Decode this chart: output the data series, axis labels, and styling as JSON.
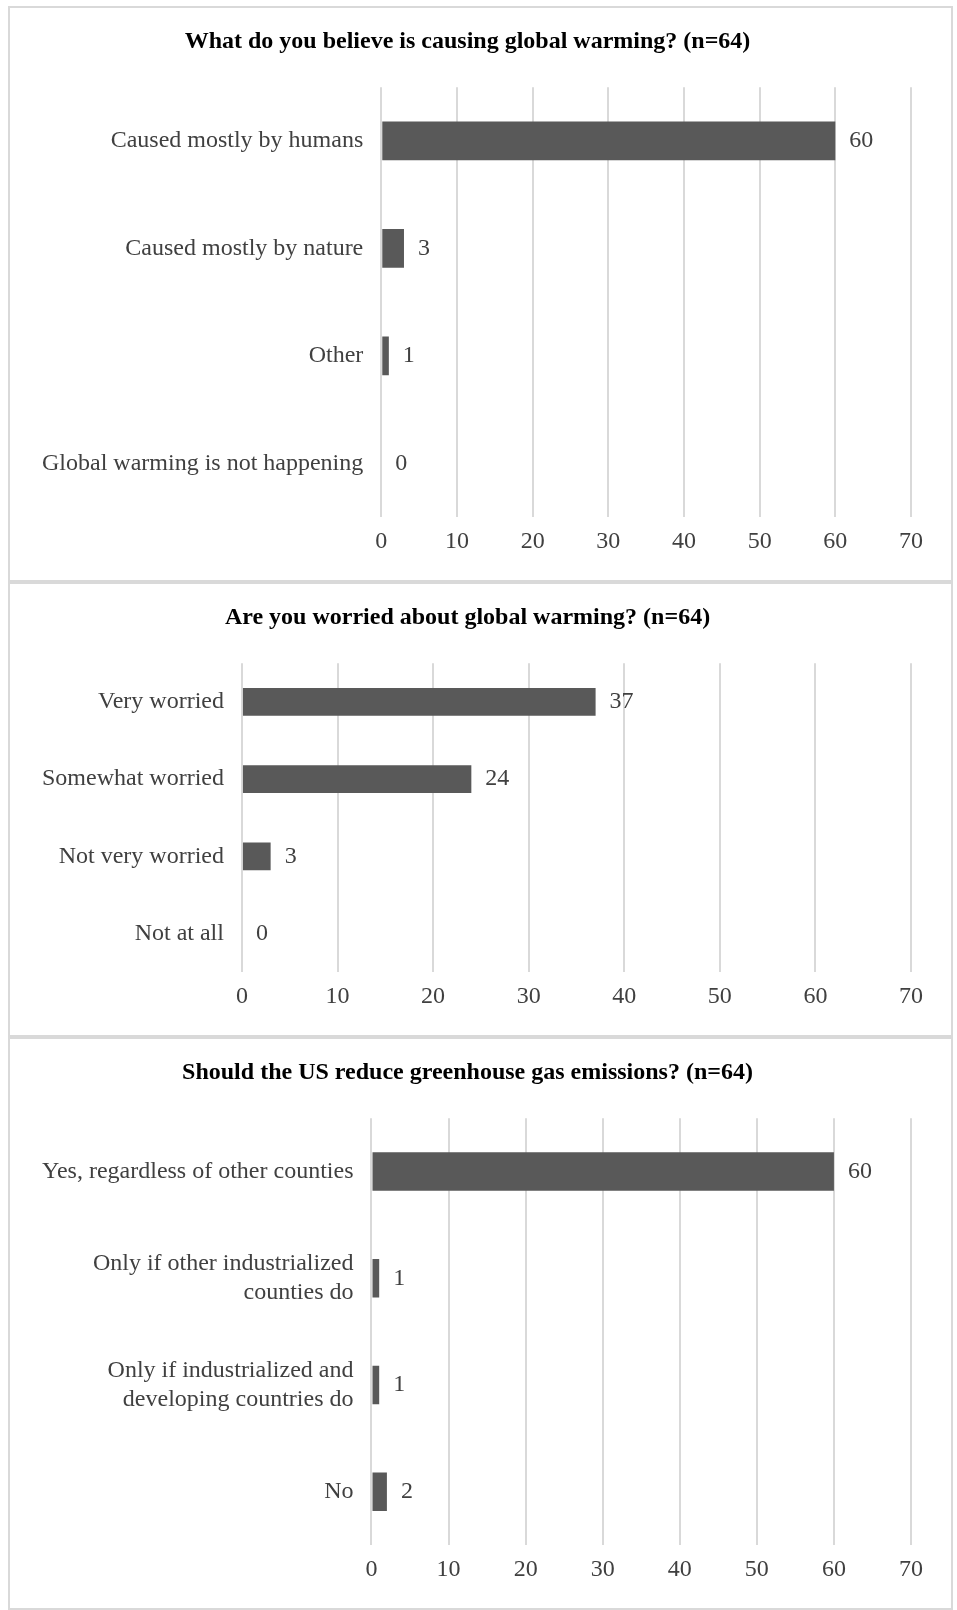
{
  "chart_data": [
    {
      "type": "bar",
      "orientation": "horizontal",
      "title": "What do you believe is causing global warming? (n=64)",
      "categories": [
        "Caused mostly by humans",
        "Caused mostly by nature",
        "Other",
        "Global warming is not happening"
      ],
      "values": [
        60,
        3,
        1,
        0
      ],
      "color": "#595959",
      "xlim": [
        0,
        70
      ],
      "xticks": [
        0,
        10,
        20,
        30,
        40,
        50,
        60,
        70
      ],
      "grid": "x",
      "data_labels": true,
      "legend": false
    },
    {
      "type": "bar",
      "orientation": "horizontal",
      "title": "Are you worried about global warming? (n=64)",
      "categories": [
        "Very worried",
        "Somewhat worried",
        "Not very worried",
        "Not at all"
      ],
      "values": [
        37,
        24,
        3,
        0
      ],
      "color": "#595959",
      "xlim": [
        0,
        70
      ],
      "xticks": [
        0,
        10,
        20,
        30,
        40,
        50,
        60,
        70
      ],
      "grid": "x",
      "data_labels": true,
      "legend": false
    },
    {
      "type": "bar",
      "orientation": "horizontal",
      "title": "Should the US reduce greenhouse gas emissions? (n=64)",
      "categories": [
        "Yes, regardless of other counties",
        "Only if other industrialized counties do",
        "Only if industrialized and developing countries do",
        "No"
      ],
      "values": [
        60,
        1,
        1,
        2
      ],
      "color": "#595959",
      "xlim": [
        0,
        70
      ],
      "xticks": [
        0,
        10,
        20,
        30,
        40,
        50,
        60,
        70
      ],
      "grid": "x",
      "data_labels": true,
      "legend": false
    }
  ]
}
